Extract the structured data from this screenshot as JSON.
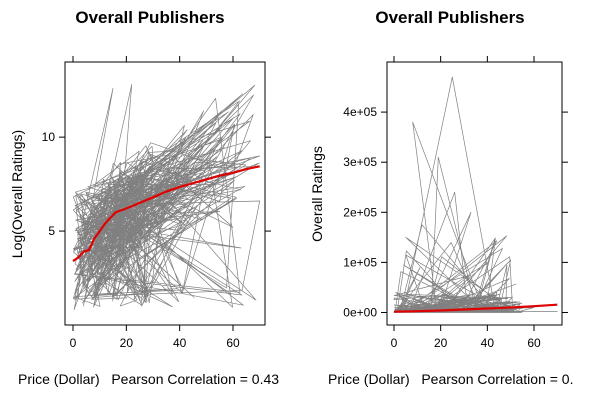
{
  "chart_data": [
    {
      "type": "line",
      "title": "Overall Publishers",
      "xlabel": "Price (Dollar)   Pearson Correlation = 0.43",
      "ylabel": "Log(Overall Ratings)",
      "xlim": [
        -3,
        72
      ],
      "ylim": [
        0,
        14
      ],
      "x_ticks": [
        0,
        20,
        40,
        60
      ],
      "x_tick_labels": [
        "0",
        "20",
        "40",
        "60"
      ],
      "y_ticks": [
        5,
        10
      ],
      "y_tick_labels": [
        "5",
        "10"
      ],
      "grid": false,
      "series": [
        {
          "role": "raw-lines",
          "color": "#808080",
          "x_range": [
            0,
            70
          ],
          "y_range": [
            0.7,
            12.8
          ]
        },
        {
          "role": "smoothed-trend",
          "color": "#e00000",
          "x": [
            0,
            2,
            4,
            6,
            8,
            10,
            12,
            14,
            16,
            18,
            20,
            25,
            30,
            35,
            40,
            45,
            50,
            55,
            60,
            65,
            70
          ],
          "y": [
            3.4,
            3.6,
            3.9,
            4.0,
            4.6,
            5.0,
            5.4,
            5.7,
            6.0,
            6.1,
            6.2,
            6.5,
            6.8,
            7.1,
            7.35,
            7.55,
            7.75,
            7.95,
            8.1,
            8.3,
            8.45
          ]
        }
      ]
    },
    {
      "type": "line",
      "title": "Overall Publishers",
      "xlabel": "Price (Dollar)   Pearson Correlation = 0.",
      "ylabel": "Overall Ratings",
      "xlim": [
        -3,
        72
      ],
      "ylim": [
        -25000,
        500000
      ],
      "x_ticks": [
        0,
        20,
        40,
        60
      ],
      "x_tick_labels": [
        "0",
        "20",
        "40",
        "60"
      ],
      "y_ticks": [
        0,
        100000,
        200000,
        300000,
        400000
      ],
      "y_tick_labels": [
        "0e+00",
        "1e+05",
        "2e+05",
        "3e+05",
        "4e+05"
      ],
      "grid": false,
      "series": [
        {
          "role": "raw-lines",
          "color": "#808080",
          "x_range": [
            0,
            70
          ],
          "y_range": [
            0,
            470000
          ]
        },
        {
          "role": "smoothed-trend",
          "color": "#e00000",
          "x": [
            0,
            10,
            20,
            30,
            40,
            50,
            60,
            70
          ],
          "y": [
            1500,
            2500,
            4000,
            6000,
            8000,
            10000,
            12500,
            15500
          ]
        }
      ]
    }
  ]
}
